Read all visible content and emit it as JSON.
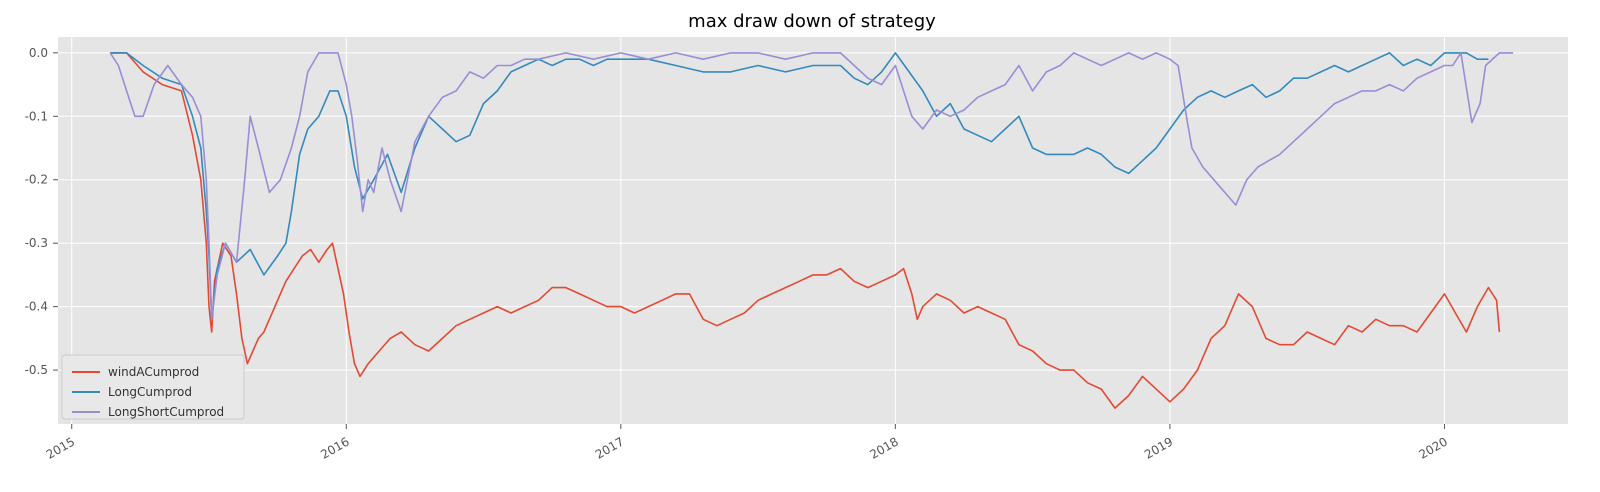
{
  "chart_data": {
    "type": "line",
    "title": "max draw down of strategy",
    "xlabel": "",
    "ylabel": "",
    "x_ticks": [
      "2015",
      "2016",
      "2017",
      "2018",
      "2019",
      "2020"
    ],
    "y_ticks": [
      "0.0",
      "-0.1",
      "-0.2",
      "-0.3",
      "-0.4",
      "-0.5"
    ],
    "xlim": [
      2014.95,
      2020.45
    ],
    "ylim": [
      -0.585,
      0.025
    ],
    "grid": true,
    "legend_position": "lower-left",
    "background": "#e5e5e5",
    "series": [
      {
        "name": "windACumprod",
        "color": "#e24a33",
        "x": [
          2015.14,
          2015.2,
          2015.26,
          2015.33,
          2015.4,
          2015.44,
          2015.47,
          2015.49,
          2015.5,
          2015.51,
          2015.52,
          2015.55,
          2015.58,
          2015.6,
          2015.62,
          2015.64,
          2015.66,
          2015.68,
          2015.7,
          2015.72,
          2015.75,
          2015.78,
          2015.81,
          2015.84,
          2015.87,
          2015.9,
          2015.93,
          2015.95,
          2015.97,
          2015.99,
          2016.01,
          2016.03,
          2016.05,
          2016.08,
          2016.12,
          2016.16,
          2016.2,
          2016.25,
          2016.3,
          2016.35,
          2016.4,
          2016.45,
          2016.5,
          2016.55,
          2016.6,
          2016.65,
          2016.7,
          2016.75,
          2016.8,
          2016.85,
          2016.9,
          2016.95,
          2017.0,
          2017.05,
          2017.1,
          2017.15,
          2017.2,
          2017.25,
          2017.3,
          2017.35,
          2017.4,
          2017.45,
          2017.5,
          2017.55,
          2017.6,
          2017.65,
          2017.7,
          2017.75,
          2017.8,
          2017.85,
          2017.9,
          2017.95,
          2018.0,
          2018.03,
          2018.06,
          2018.08,
          2018.1,
          2018.15,
          2018.2,
          2018.25,
          2018.3,
          2018.35,
          2018.4,
          2018.45,
          2018.5,
          2018.55,
          2018.6,
          2018.65,
          2018.7,
          2018.75,
          2018.8,
          2018.85,
          2018.9,
          2018.95,
          2019.0,
          2019.05,
          2019.1,
          2019.15,
          2019.2,
          2019.25,
          2019.3,
          2019.35,
          2019.4,
          2019.45,
          2019.5,
          2019.55,
          2019.6,
          2019.65,
          2019.7,
          2019.75,
          2019.8,
          2019.85,
          2019.9,
          2019.95,
          2020.0,
          2020.04,
          2020.08,
          2020.12,
          2020.16,
          2020.19,
          2020.2
        ],
        "values": [
          0.0,
          0.0,
          -0.03,
          -0.05,
          -0.06,
          -0.13,
          -0.2,
          -0.3,
          -0.4,
          -0.44,
          -0.36,
          -0.3,
          -0.32,
          -0.38,
          -0.45,
          -0.49,
          -0.47,
          -0.45,
          -0.44,
          -0.42,
          -0.39,
          -0.36,
          -0.34,
          -0.32,
          -0.31,
          -0.33,
          -0.31,
          -0.3,
          -0.34,
          -0.38,
          -0.44,
          -0.49,
          -0.51,
          -0.49,
          -0.47,
          -0.45,
          -0.44,
          -0.46,
          -0.47,
          -0.45,
          -0.43,
          -0.42,
          -0.41,
          -0.4,
          -0.41,
          -0.4,
          -0.39,
          -0.37,
          -0.37,
          -0.38,
          -0.39,
          -0.4,
          -0.4,
          -0.41,
          -0.4,
          -0.39,
          -0.38,
          -0.38,
          -0.42,
          -0.43,
          -0.42,
          -0.41,
          -0.39,
          -0.38,
          -0.37,
          -0.36,
          -0.35,
          -0.35,
          -0.34,
          -0.36,
          -0.37,
          -0.36,
          -0.35,
          -0.34,
          -0.38,
          -0.42,
          -0.4,
          -0.38,
          -0.39,
          -0.41,
          -0.4,
          -0.41,
          -0.42,
          -0.46,
          -0.47,
          -0.49,
          -0.5,
          -0.5,
          -0.52,
          -0.53,
          -0.56,
          -0.54,
          -0.51,
          -0.53,
          -0.55,
          -0.53,
          -0.5,
          -0.45,
          -0.43,
          -0.38,
          -0.4,
          -0.45,
          -0.46,
          -0.46,
          -0.44,
          -0.45,
          -0.46,
          -0.43,
          -0.44,
          -0.42,
          -0.43,
          -0.43,
          -0.44,
          -0.41,
          -0.38,
          -0.41,
          -0.44,
          -0.4,
          -0.37,
          -0.39,
          -0.44
        ]
      },
      {
        "name": "LongCumprod",
        "color": "#348abd",
        "x": [
          2015.14,
          2015.2,
          2015.26,
          2015.33,
          2015.4,
          2015.44,
          2015.47,
          2015.49,
          2015.5,
          2015.51,
          2015.53,
          2015.56,
          2015.6,
          2015.65,
          2015.7,
          2015.75,
          2015.78,
          2015.8,
          2015.83,
          2015.86,
          2015.9,
          2015.94,
          2015.97,
          2016.0,
          2016.03,
          2016.06,
          2016.1,
          2016.15,
          2016.2,
          2016.25,
          2016.3,
          2016.35,
          2016.4,
          2016.45,
          2016.5,
          2016.55,
          2016.6,
          2016.65,
          2016.7,
          2016.75,
          2016.8,
          2016.85,
          2016.9,
          2016.95,
          2017.0,
          2017.1,
          2017.2,
          2017.3,
          2017.4,
          2017.5,
          2017.6,
          2017.7,
          2017.8,
          2017.85,
          2017.9,
          2017.95,
          2018.0,
          2018.05,
          2018.1,
          2018.15,
          2018.2,
          2018.25,
          2018.3,
          2018.35,
          2018.4,
          2018.45,
          2018.5,
          2018.55,
          2018.6,
          2018.65,
          2018.7,
          2018.75,
          2018.8,
          2018.85,
          2018.9,
          2018.95,
          2019.0,
          2019.05,
          2019.1,
          2019.15,
          2019.2,
          2019.25,
          2019.3,
          2019.35,
          2019.4,
          2019.45,
          2019.5,
          2019.55,
          2019.6,
          2019.65,
          2019.7,
          2019.75,
          2019.8,
          2019.85,
          2019.9,
          2019.95,
          2020.0,
          2020.04,
          2020.08,
          2020.12,
          2020.16
        ],
        "values": [
          0.0,
          0.0,
          -0.02,
          -0.04,
          -0.05,
          -0.1,
          -0.15,
          -0.25,
          -0.32,
          -0.42,
          -0.34,
          -0.3,
          -0.33,
          -0.31,
          -0.35,
          -0.32,
          -0.3,
          -0.25,
          -0.16,
          -0.12,
          -0.1,
          -0.06,
          -0.06,
          -0.1,
          -0.18,
          -0.23,
          -0.2,
          -0.16,
          -0.22,
          -0.15,
          -0.1,
          -0.12,
          -0.14,
          -0.13,
          -0.08,
          -0.06,
          -0.03,
          -0.02,
          -0.01,
          -0.02,
          -0.01,
          -0.01,
          -0.02,
          -0.01,
          -0.01,
          -0.01,
          -0.02,
          -0.03,
          -0.03,
          -0.02,
          -0.03,
          -0.02,
          -0.02,
          -0.04,
          -0.05,
          -0.03,
          0.0,
          -0.03,
          -0.06,
          -0.1,
          -0.08,
          -0.12,
          -0.13,
          -0.14,
          -0.12,
          -0.1,
          -0.15,
          -0.16,
          -0.16,
          -0.16,
          -0.15,
          -0.16,
          -0.18,
          -0.19,
          -0.17,
          -0.15,
          -0.12,
          -0.09,
          -0.07,
          -0.06,
          -0.07,
          -0.06,
          -0.05,
          -0.07,
          -0.06,
          -0.04,
          -0.04,
          -0.03,
          -0.02,
          -0.03,
          -0.02,
          -0.01,
          0.0,
          -0.02,
          -0.01,
          -0.02,
          0.0,
          0.0,
          0.0,
          -0.01,
          -0.01
        ]
      },
      {
        "name": "LongShortCumprod",
        "color": "#988ed5",
        "x": [
          2015.14,
          2015.17,
          2015.2,
          2015.23,
          2015.26,
          2015.3,
          2015.35,
          2015.4,
          2015.44,
          2015.47,
          2015.49,
          2015.5,
          2015.51,
          2015.53,
          2015.56,
          2015.6,
          2015.63,
          2015.65,
          2015.68,
          2015.72,
          2015.76,
          2015.8,
          2015.83,
          2015.86,
          2015.9,
          2015.94,
          2015.97,
          2016.0,
          2016.02,
          2016.04,
          2016.06,
          2016.08,
          2016.1,
          2016.13,
          2016.16,
          2016.2,
          2016.25,
          2016.3,
          2016.35,
          2016.4,
          2016.45,
          2016.5,
          2016.55,
          2016.6,
          2016.65,
          2016.7,
          2016.8,
          2016.9,
          2017.0,
          2017.1,
          2017.2,
          2017.3,
          2017.4,
          2017.5,
          2017.6,
          2017.7,
          2017.8,
          2017.85,
          2017.9,
          2017.95,
          2018.0,
          2018.03,
          2018.06,
          2018.1,
          2018.15,
          2018.2,
          2018.25,
          2018.3,
          2018.35,
          2018.4,
          2018.45,
          2018.5,
          2018.55,
          2018.6,
          2018.65,
          2018.7,
          2018.75,
          2018.8,
          2018.85,
          2018.9,
          2018.95,
          2019.0,
          2019.03,
          2019.06,
          2019.08,
          2019.12,
          2019.16,
          2019.2,
          2019.24,
          2019.28,
          2019.32,
          2019.36,
          2019.4,
          2019.45,
          2019.5,
          2019.55,
          2019.6,
          2019.65,
          2019.7,
          2019.75,
          2019.8,
          2019.85,
          2019.9,
          2019.95,
          2020.0,
          2020.03,
          2020.06,
          2020.1,
          2020.13,
          2020.15,
          2020.2,
          2020.25
        ],
        "values": [
          0.0,
          -0.02,
          -0.06,
          -0.1,
          -0.1,
          -0.05,
          -0.02,
          -0.05,
          -0.07,
          -0.1,
          -0.2,
          -0.3,
          -0.42,
          -0.35,
          -0.3,
          -0.33,
          -0.2,
          -0.1,
          -0.15,
          -0.22,
          -0.2,
          -0.15,
          -0.1,
          -0.03,
          0.0,
          0.0,
          0.0,
          -0.05,
          -0.1,
          -0.17,
          -0.25,
          -0.2,
          -0.22,
          -0.15,
          -0.2,
          -0.25,
          -0.14,
          -0.1,
          -0.07,
          -0.06,
          -0.03,
          -0.04,
          -0.02,
          -0.02,
          -0.01,
          -0.01,
          0.0,
          -0.01,
          0.0,
          -0.01,
          0.0,
          -0.01,
          0.0,
          0.0,
          -0.01,
          0.0,
          0.0,
          -0.02,
          -0.04,
          -0.05,
          -0.02,
          -0.06,
          -0.1,
          -0.12,
          -0.09,
          -0.1,
          -0.09,
          -0.07,
          -0.06,
          -0.05,
          -0.02,
          -0.06,
          -0.03,
          -0.02,
          0.0,
          -0.01,
          -0.02,
          -0.01,
          0.0,
          -0.01,
          0.0,
          -0.01,
          -0.02,
          -0.1,
          -0.15,
          -0.18,
          -0.2,
          -0.22,
          -0.24,
          -0.2,
          -0.18,
          -0.17,
          -0.16,
          -0.14,
          -0.12,
          -0.1,
          -0.08,
          -0.07,
          -0.06,
          -0.06,
          -0.05,
          -0.06,
          -0.04,
          -0.03,
          -0.02,
          -0.02,
          0.0,
          -0.11,
          -0.08,
          -0.02,
          0.0,
          0.0
        ]
      }
    ]
  }
}
